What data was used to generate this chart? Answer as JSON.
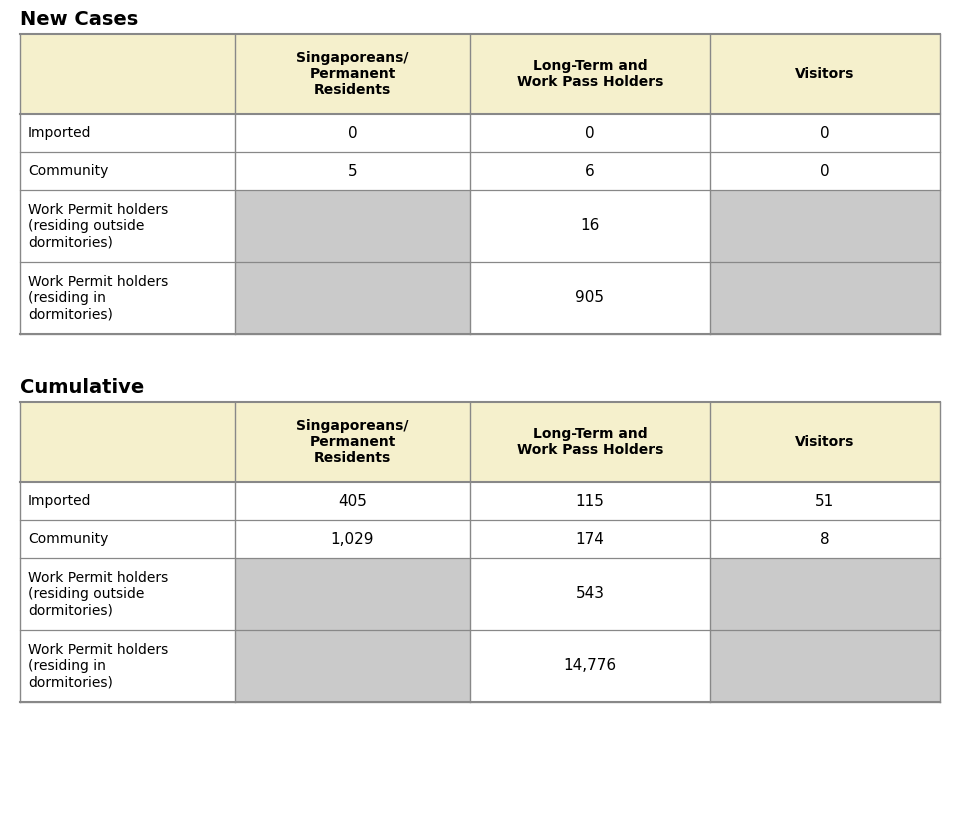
{
  "title1": "New Cases",
  "title2": "Cumulative",
  "header_bg": "#F5F0CC",
  "gray_bg": "#CACACA",
  "white_bg": "#FFFFFF",
  "border_color": "#888888",
  "fig_bg": "#FFFFFF",
  "col_headers": [
    "Singaporeans/\nPermanent\nResidents",
    "Long-Term and\nWork Pass Holders",
    "Visitors"
  ],
  "new_rows": [
    {
      "label": "Imported",
      "values": [
        "0",
        "0",
        "0"
      ],
      "gray": [
        false,
        false,
        false
      ]
    },
    {
      "label": "Community",
      "values": [
        "5",
        "6",
        "0"
      ],
      "gray": [
        false,
        false,
        false
      ]
    },
    {
      "label": "Work Permit holders\n(residing outside\ndormitories)",
      "values": [
        "",
        "16",
        ""
      ],
      "gray": [
        true,
        false,
        true
      ]
    },
    {
      "label": "Work Permit holders\n(residing in\ndormitories)",
      "values": [
        "",
        "905",
        ""
      ],
      "gray": [
        true,
        false,
        true
      ]
    }
  ],
  "cum_rows": [
    {
      "label": "Imported",
      "values": [
        "405",
        "115",
        "51"
      ],
      "gray": [
        false,
        false,
        false
      ]
    },
    {
      "label": "Community",
      "values": [
        "1,029",
        "174",
        "8"
      ],
      "gray": [
        false,
        false,
        false
      ]
    },
    {
      "label": "Work Permit holders\n(residing outside\ndormitories)",
      "values": [
        "",
        "543",
        ""
      ],
      "gray": [
        true,
        false,
        true
      ]
    },
    {
      "label": "Work Permit holders\n(residing in\ndormitories)",
      "values": [
        "",
        "14,776",
        ""
      ],
      "gray": [
        true,
        false,
        true
      ]
    }
  ]
}
